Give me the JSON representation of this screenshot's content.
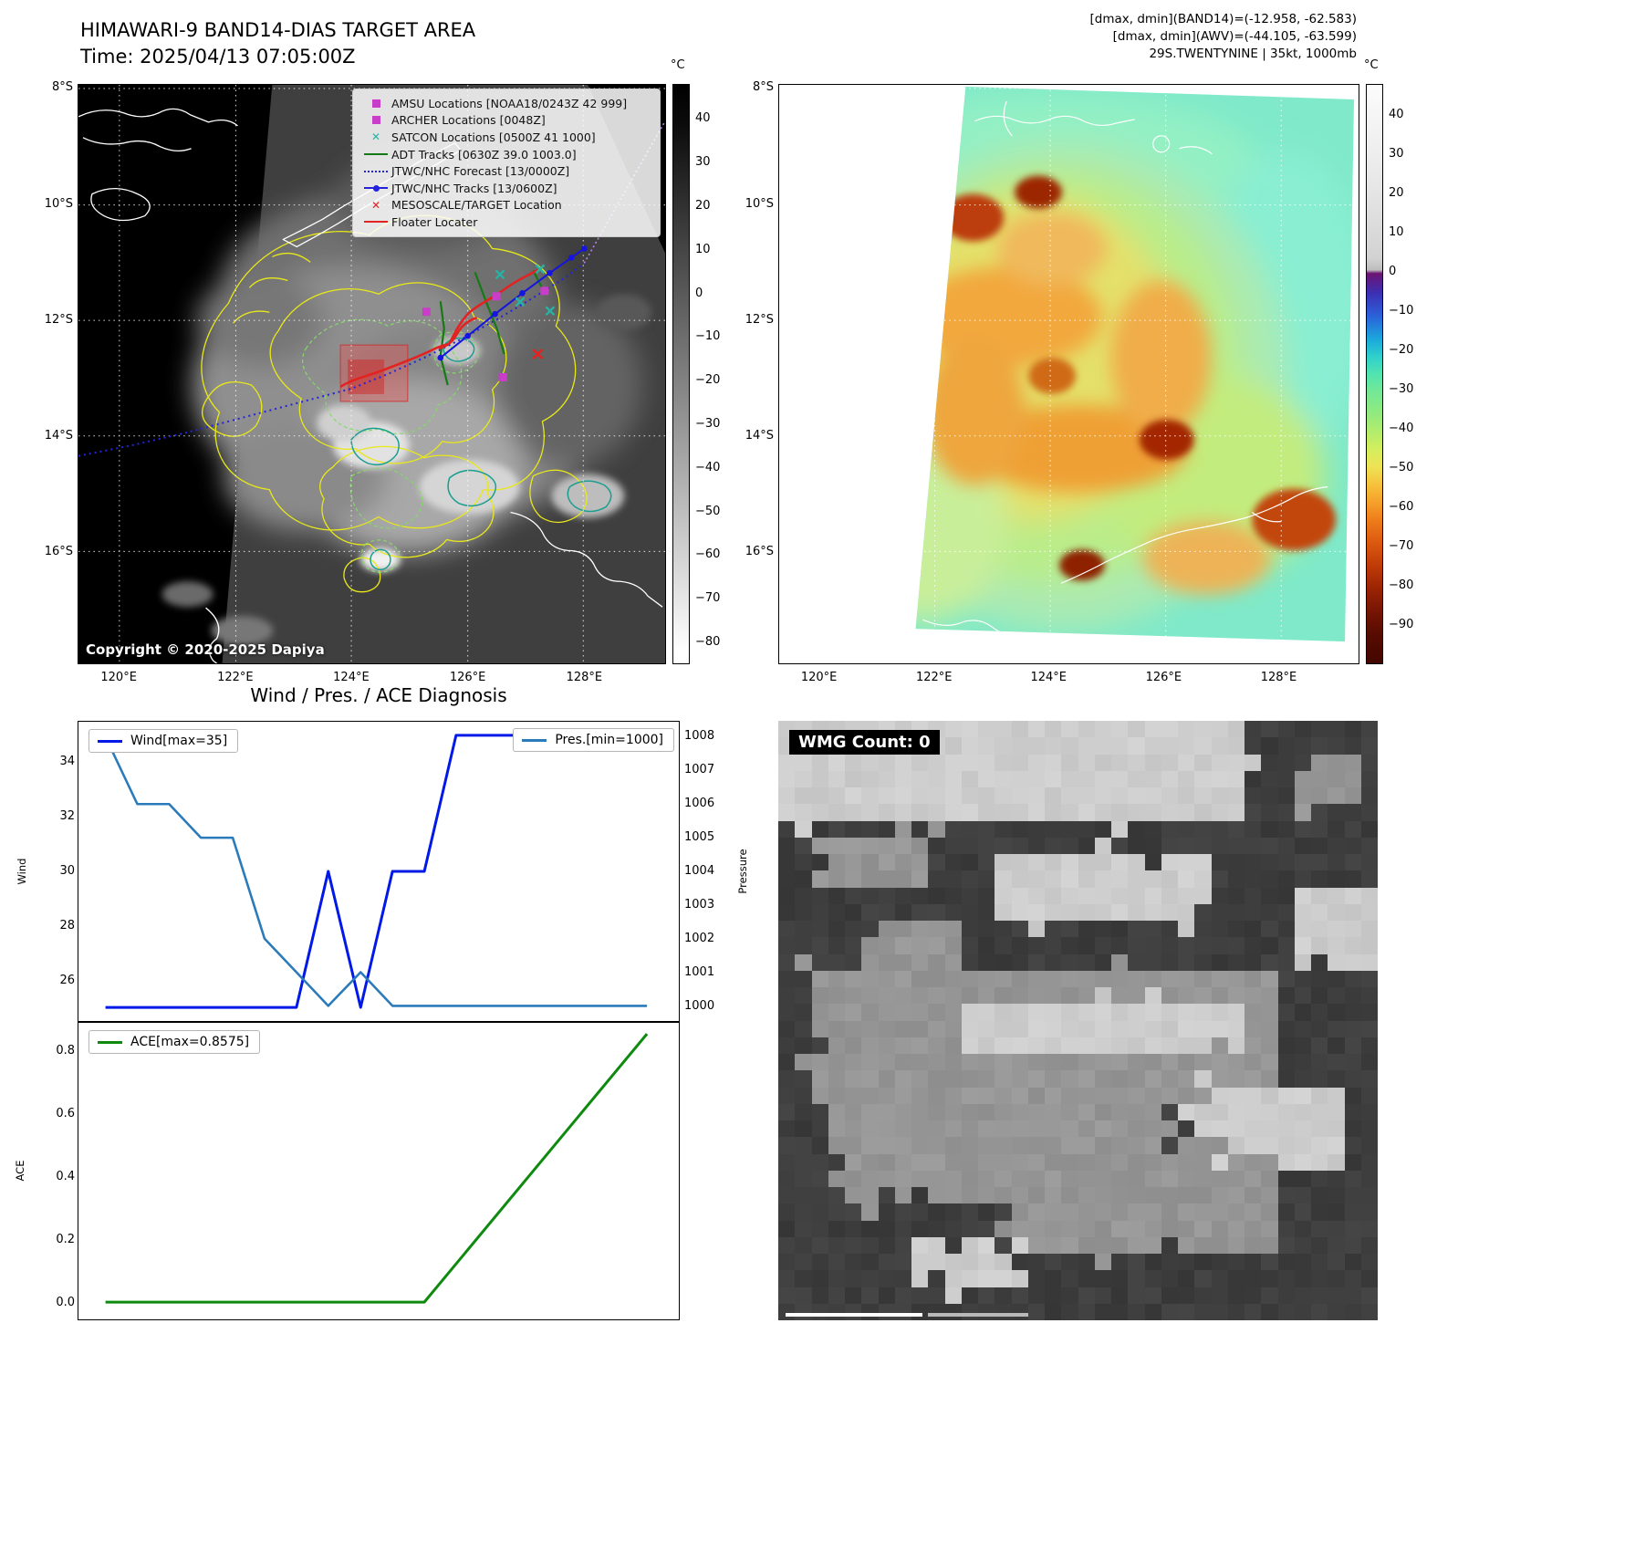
{
  "panel_ir": {
    "title": "HIMAWARI-9 BAND14-DIAS TARGET AREA",
    "subtitle": "Time: 2025/04/13 07:05:00Z",
    "copyright": "Copyright © 2020-2025 Dapiya",
    "colorbar": {
      "unit": "°C",
      "range": [
        48,
        -85
      ],
      "ticks": [
        {
          "v": 40,
          "label": "40"
        },
        {
          "v": 30,
          "label": "30"
        },
        {
          "v": 20,
          "label": "20"
        },
        {
          "v": 10,
          "label": "10"
        },
        {
          "v": 0,
          "label": "0"
        },
        {
          "v": -10,
          "label": "−10"
        },
        {
          "v": -20,
          "label": "−20"
        },
        {
          "v": -30,
          "label": "−30"
        },
        {
          "v": -40,
          "label": "−40"
        },
        {
          "v": -50,
          "label": "−50"
        },
        {
          "v": -60,
          "label": "−60"
        },
        {
          "v": -70,
          "label": "−70"
        },
        {
          "v": -80,
          "label": "−80"
        }
      ]
    },
    "lat_ticks": [
      {
        "label": "8°S",
        "pos": 0.007
      },
      {
        "label": "10°S",
        "pos": 0.207
      },
      {
        "label": "12°S",
        "pos": 0.407
      },
      {
        "label": "14°S",
        "pos": 0.607
      },
      {
        "label": "16°S",
        "pos": 0.807
      }
    ],
    "lon_ticks": [
      {
        "label": "120°E",
        "pos": 0.07
      },
      {
        "label": "122°E",
        "pos": 0.268
      },
      {
        "label": "124°E",
        "pos": 0.465
      },
      {
        "label": "126°E",
        "pos": 0.663
      },
      {
        "label": "128°E",
        "pos": 0.861
      }
    ],
    "legend": [
      {
        "label": "AMSU Locations [NOAA18/0243Z 42 999]",
        "marker": "square",
        "color": "#c93ec9"
      },
      {
        "label": "ARCHER Locations [0048Z]",
        "marker": "square",
        "color": "#c93ec9"
      },
      {
        "label": "SATCON Locations [0500Z 41 1000]",
        "marker": "x",
        "color": "#26b3a4"
      },
      {
        "label": "ADT Tracks [0630Z 39.0 1003.0]",
        "marker": "line",
        "color": "#157a15"
      },
      {
        "label": "JTWC/NHC Forecast [13/0000Z]",
        "marker": "dotted-line",
        "color": "#2323dd"
      },
      {
        "label": "JTWC/NHC Tracks [13/0600Z]",
        "marker": "line-marker",
        "color": "#2323dd"
      },
      {
        "label": "MESOSCALE/TARGET Location",
        "marker": "x",
        "color": "#e32222"
      },
      {
        "label": "Floater Locater",
        "marker": "line",
        "color": "#e32222"
      }
    ]
  },
  "panel_awv": {
    "header_lines": [
      "[dmax, dmin](BAND14)=(-12.958, -62.583)",
      "[dmax, dmin](AWV)=(-44.105, -63.599)",
      "29S.TWENTYNINE | 35kt, 1000mb"
    ],
    "colorbar": {
      "unit": "°C",
      "range": [
        48,
        -100
      ],
      "ticks": [
        {
          "v": 40,
          "label": "40"
        },
        {
          "v": 30,
          "label": "30"
        },
        {
          "v": 20,
          "label": "20"
        },
        {
          "v": 10,
          "label": "10"
        },
        {
          "v": 0,
          "label": "0"
        },
        {
          "v": -10,
          "label": "−10"
        },
        {
          "v": -20,
          "label": "−20"
        },
        {
          "v": -30,
          "label": "−30"
        },
        {
          "v": -40,
          "label": "−40"
        },
        {
          "v": -50,
          "label": "−50"
        },
        {
          "v": -60,
          "label": "−60"
        },
        {
          "v": -70,
          "label": "−70"
        },
        {
          "v": -80,
          "label": "−80"
        },
        {
          "v": -90,
          "label": "−90"
        }
      ]
    },
    "lat_ticks": [
      {
        "label": "8°S",
        "pos": 0.007
      },
      {
        "label": "10°S",
        "pos": 0.207
      },
      {
        "label": "12°S",
        "pos": 0.407
      },
      {
        "label": "14°S",
        "pos": 0.607
      },
      {
        "label": "16°S",
        "pos": 0.807
      }
    ],
    "lon_ticks": [
      {
        "label": "120°E",
        "pos": 0.07
      },
      {
        "label": "122°E",
        "pos": 0.268
      },
      {
        "label": "124°E",
        "pos": 0.465
      },
      {
        "label": "126°E",
        "pos": 0.663
      },
      {
        "label": "128°E",
        "pos": 0.861
      }
    ]
  },
  "panel_wmg": {
    "label": "WMG Count: 0"
  },
  "chart_data": [
    {
      "id": "wind_pres_diagnosis",
      "type": "line",
      "title": "Wind / Pres. / ACE Diagnosis",
      "x_axis": {
        "range": [
          0,
          1
        ],
        "note": "normalized time axis — no x tick labels shown"
      },
      "legend_position": "upper-left and upper-right",
      "axes": {
        "left": {
          "label": "Wind",
          "range": [
            24.5,
            35.5
          ],
          "ticks": [
            {
              "v": 26,
              "label": "26"
            },
            {
              "v": 28,
              "label": "28"
            },
            {
              "v": 30,
              "label": "30"
            },
            {
              "v": 32,
              "label": "32"
            },
            {
              "v": 34,
              "label": "34"
            }
          ]
        },
        "right": {
          "label": "Pressure",
          "range": [
            999.55,
            1008.45
          ],
          "ticks": [
            {
              "v": 1000,
              "label": "1000"
            },
            {
              "v": 1001,
              "label": "1001"
            },
            {
              "v": 1002,
              "label": "1002"
            },
            {
              "v": 1003,
              "label": "1003"
            },
            {
              "v": 1004,
              "label": "1004"
            },
            {
              "v": 1005,
              "label": "1005"
            },
            {
              "v": 1006,
              "label": "1006"
            },
            {
              "v": 1007,
              "label": "1007"
            },
            {
              "v": 1008,
              "label": "1008"
            }
          ]
        }
      },
      "series": [
        {
          "name": "Wind[max=35]",
          "axis": "left",
          "color": "#0019e6",
          "linewidth": 3,
          "x": [
            0.045,
            0.363,
            0.416,
            0.47,
            0.523,
            0.576,
            0.629,
            0.947
          ],
          "y": [
            25,
            25,
            30,
            25,
            30,
            30,
            35,
            35
          ]
        },
        {
          "name": "Pres.[min=1000]",
          "axis": "right",
          "color": "#2b7bba",
          "linewidth": 2.6,
          "x": [
            0.045,
            0.098,
            0.151,
            0.204,
            0.257,
            0.31,
            0.363,
            0.416,
            0.47,
            0.523,
            0.947
          ],
          "y": [
            1008,
            1006,
            1006,
            1005,
            1005,
            1002,
            1001,
            1000,
            1001,
            1000,
            1000
          ]
        }
      ]
    },
    {
      "id": "ace_diagnosis",
      "type": "line",
      "legend_position": "upper-left",
      "axes": {
        "left": {
          "label": "ACE",
          "range": [
            -0.055,
            0.893
          ],
          "ticks": [
            {
              "v": 0,
              "label": "0.0"
            },
            {
              "v": 0.2,
              "label": "0.2"
            },
            {
              "v": 0.4,
              "label": "0.4"
            },
            {
              "v": 0.6,
              "label": "0.6"
            },
            {
              "v": 0.8,
              "label": "0.8"
            }
          ]
        }
      },
      "series": [
        {
          "name": "ACE[max=0.8575]",
          "axis": "left",
          "color": "#0e8a0e",
          "linewidth": 3,
          "x": [
            0.045,
            0.576,
            0.947
          ],
          "y": [
            0,
            0,
            0.8575
          ]
        }
      ]
    }
  ]
}
